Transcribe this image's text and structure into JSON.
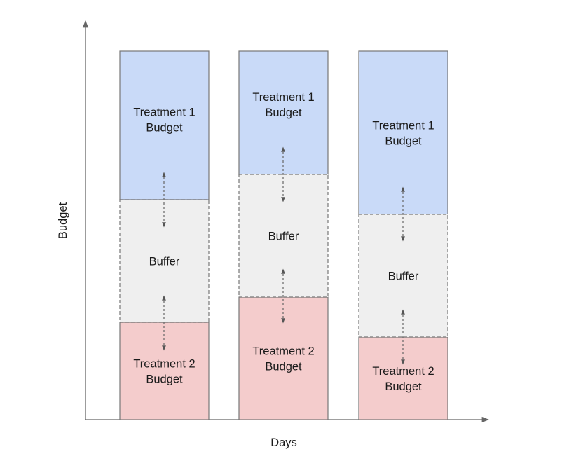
{
  "diagram": {
    "x_axis_label": "Days",
    "y_axis_label": "Budget",
    "colors": {
      "treatment1": "#c9daf8",
      "buffer": "#efefef",
      "treatment2": "#f4cccc",
      "border": "#777777",
      "axis": "#666666",
      "arrow": "#666666"
    },
    "segment_labels": {
      "treatment1": [
        "Treatment 1",
        "Budget"
      ],
      "buffer": [
        "Buffer"
      ],
      "treatment2": [
        "Treatment 2",
        "Budget"
      ]
    }
  }
}
